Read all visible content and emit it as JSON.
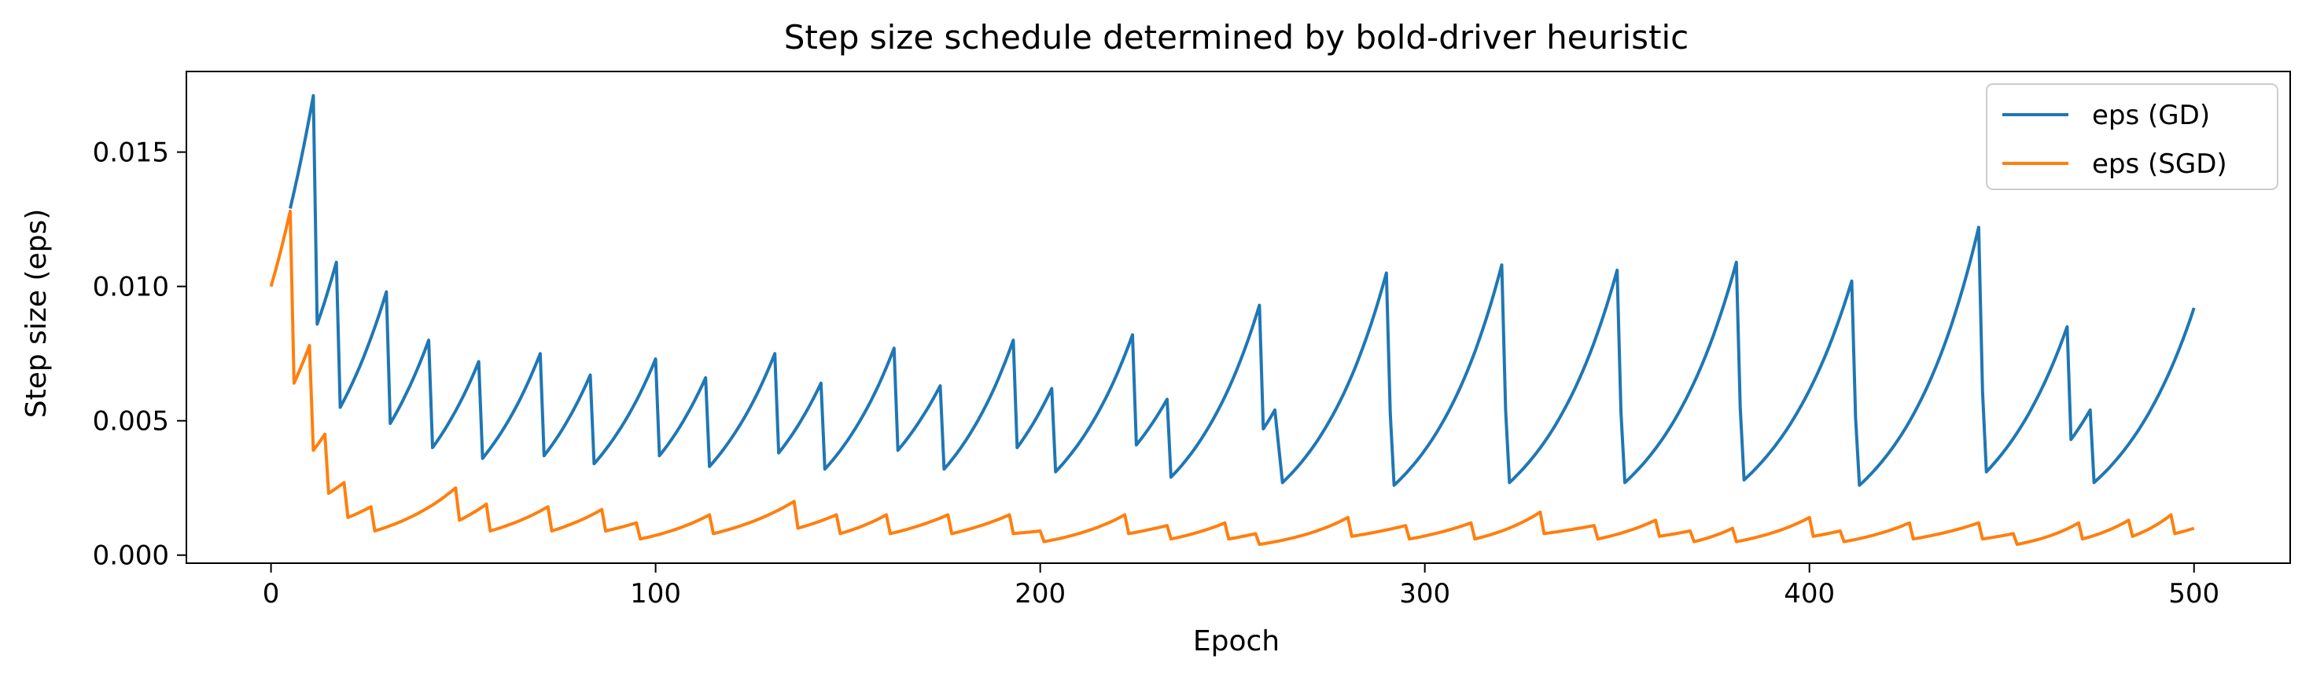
{
  "chart_data": {
    "type": "line",
    "title": "Step size schedule determined by bold-driver heuristic",
    "xlabel": "Epoch",
    "ylabel": "Step size (eps)",
    "xlim": [
      -22,
      525
    ],
    "ylim": [
      -0.0003,
      0.018
    ],
    "xticks": [
      0,
      100,
      200,
      300,
      400,
      500
    ],
    "xtick_labels": [
      "0",
      "100",
      "200",
      "300",
      "400",
      "500"
    ],
    "yticks": [
      0.0,
      0.005,
      0.01,
      0.015
    ],
    "ytick_labels": [
      "0.000",
      "0.005",
      "0.010",
      "0.015"
    ],
    "grid": false,
    "legend": "top-right",
    "series": [
      {
        "name": "eps (GD)",
        "color": "#1f77b4",
        "points": [
          [
            5,
            0.0129
          ],
          [
            11,
            0.0171
          ],
          [
            12,
            0.0086
          ],
          [
            17,
            0.0109
          ],
          [
            18,
            0.0055
          ],
          [
            30,
            0.0098
          ],
          [
            31,
            0.0049
          ],
          [
            41,
            0.008
          ],
          [
            42,
            0.004
          ],
          [
            54,
            0.0072
          ],
          [
            55,
            0.0036
          ],
          [
            70,
            0.0075
          ],
          [
            71,
            0.0037
          ],
          [
            83,
            0.0067
          ],
          [
            84,
            0.0034
          ],
          [
            100,
            0.0073
          ],
          [
            101,
            0.0037
          ],
          [
            113,
            0.0066
          ],
          [
            114,
            0.0033
          ],
          [
            131,
            0.0075
          ],
          [
            132,
            0.0038
          ],
          [
            143,
            0.0064
          ],
          [
            144,
            0.0032
          ],
          [
            162,
            0.0077
          ],
          [
            163,
            0.0039
          ],
          [
            174,
            0.0063
          ],
          [
            175,
            0.0032
          ],
          [
            193,
            0.008
          ],
          [
            194,
            0.004
          ],
          [
            203,
            0.0062
          ],
          [
            204,
            0.0031
          ],
          [
            224,
            0.0082
          ],
          [
            225,
            0.0041
          ],
          [
            233,
            0.0058
          ],
          [
            234,
            0.0029
          ],
          [
            257,
            0.0093
          ],
          [
            258,
            0.0047
          ],
          [
            261,
            0.0054
          ],
          [
            263,
            0.0027
          ],
          [
            290,
            0.0105
          ],
          [
            291,
            0.0053
          ],
          [
            292,
            0.0026
          ],
          [
            320,
            0.0108
          ],
          [
            321,
            0.0054
          ],
          [
            322,
            0.0027
          ],
          [
            350,
            0.0106
          ],
          [
            351,
            0.0053
          ],
          [
            352,
            0.0027
          ],
          [
            381,
            0.0109
          ],
          [
            382,
            0.0055
          ],
          [
            383,
            0.0028
          ],
          [
            411,
            0.0102
          ],
          [
            412,
            0.0051
          ],
          [
            413,
            0.0026
          ],
          [
            444,
            0.0122
          ],
          [
            445,
            0.0061
          ],
          [
            446,
            0.0031
          ],
          [
            467,
            0.0085
          ],
          [
            468,
            0.0043
          ],
          [
            473,
            0.0054
          ],
          [
            474,
            0.0027
          ],
          [
            500,
            0.0092
          ]
        ]
      },
      {
        "name": "eps (SGD)",
        "color": "#ff7f0e",
        "points": [
          [
            0,
            0.01
          ],
          [
            5,
            0.0128
          ],
          [
            6,
            0.0064
          ],
          [
            10,
            0.0078
          ],
          [
            11,
            0.0039
          ],
          [
            14,
            0.0045
          ],
          [
            15,
            0.0023
          ],
          [
            19,
            0.0027
          ],
          [
            20,
            0.0014
          ],
          [
            26,
            0.0018
          ],
          [
            27,
            0.0009
          ],
          [
            48,
            0.0025
          ],
          [
            49,
            0.0013
          ],
          [
            56,
            0.0019
          ],
          [
            57,
            0.0009
          ],
          [
            72,
            0.0018
          ],
          [
            73,
            0.0009
          ],
          [
            86,
            0.0017
          ],
          [
            87,
            0.0009
          ],
          [
            95,
            0.0012
          ],
          [
            96,
            0.0006
          ],
          [
            114,
            0.0015
          ],
          [
            115,
            0.0008
          ],
          [
            136,
            0.002
          ],
          [
            137,
            0.001
          ],
          [
            147,
            0.0015
          ],
          [
            148,
            0.0008
          ],
          [
            160,
            0.0015
          ],
          [
            161,
            0.0008
          ],
          [
            176,
            0.0015
          ],
          [
            177,
            0.0008
          ],
          [
            192,
            0.0015
          ],
          [
            193,
            0.0008
          ],
          [
            200,
            0.0009
          ],
          [
            201,
            0.0005
          ],
          [
            222,
            0.0015
          ],
          [
            223,
            0.0008
          ],
          [
            233,
            0.0011
          ],
          [
            234,
            0.0006
          ],
          [
            248,
            0.0012
          ],
          [
            249,
            0.0006
          ],
          [
            256,
            0.0008
          ],
          [
            257,
            0.0004
          ],
          [
            280,
            0.0014
          ],
          [
            281,
            0.0007
          ],
          [
            295,
            0.0011
          ],
          [
            296,
            0.0006
          ],
          [
            312,
            0.0012
          ],
          [
            313,
            0.0006
          ],
          [
            330,
            0.0016
          ],
          [
            331,
            0.0008
          ],
          [
            344,
            0.0011
          ],
          [
            345,
            0.0006
          ],
          [
            360,
            0.0013
          ],
          [
            361,
            0.0007
          ],
          [
            369,
            0.0009
          ],
          [
            370,
            0.0005
          ],
          [
            380,
            0.001
          ],
          [
            381,
            0.0005
          ],
          [
            400,
            0.0014
          ],
          [
            401,
            0.0007
          ],
          [
            408,
            0.0009
          ],
          [
            409,
            0.0005
          ],
          [
            426,
            0.0012
          ],
          [
            427,
            0.0006
          ],
          [
            444,
            0.0012
          ],
          [
            445,
            0.0006
          ],
          [
            453,
            0.0008
          ],
          [
            454,
            0.0004
          ],
          [
            470,
            0.0012
          ],
          [
            471,
            0.0006
          ],
          [
            483,
            0.0013
          ],
          [
            484,
            0.0007
          ],
          [
            494,
            0.0015
          ],
          [
            495,
            0.0008
          ],
          [
            500,
            0.001
          ]
        ]
      }
    ]
  }
}
